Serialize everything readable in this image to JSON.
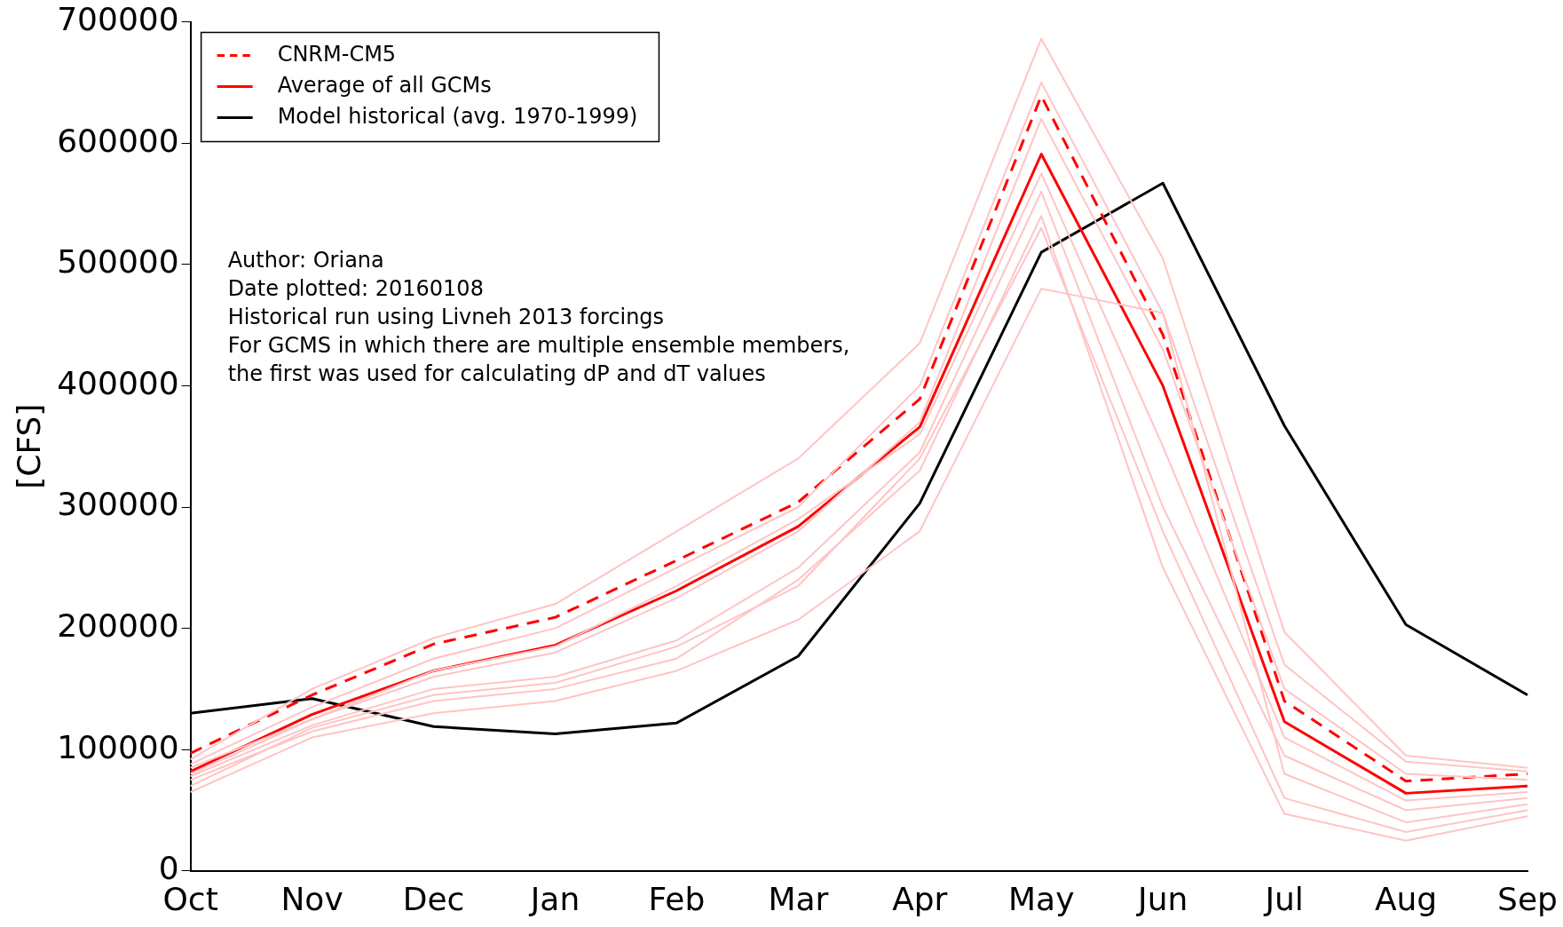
{
  "chart_data": {
    "type": "line",
    "ylabel": "[CFS]",
    "categories": [
      "Oct",
      "Nov",
      "Dec",
      "Jan",
      "Feb",
      "Mar",
      "Apr",
      "May",
      "Jun",
      "Jul",
      "Aug",
      "Sep"
    ],
    "ylim": [
      0,
      700000
    ],
    "yticks": [
      0,
      100000,
      200000,
      300000,
      400000,
      500000,
      600000,
      700000
    ],
    "grid": false,
    "legend": "top left",
    "marker": "none",
    "annotations": [
      "Author: Oriana",
      "Date plotted: 20160108",
      "Historical run using Livneh 2013 forcings",
      "For GCMS in which there are multiple ensemble members,",
      "the first was used for calculating dP and dT values"
    ],
    "series": [
      {
        "color": "#ffc4c4",
        "values": [
          92000,
          150000,
          192000,
          220000,
          280000,
          340000,
          435000,
          686000,
          505000,
          197000,
          95000,
          85000
        ]
      },
      {
        "color": "#ffc4c4",
        "values": [
          65000,
          110000,
          130000,
          140000,
          165000,
          207000,
          280000,
          480000,
          460000,
          80000,
          40000,
          55000
        ]
      },
      {
        "color": "#ffc4c4",
        "values": [
          75000,
          115000,
          140000,
          150000,
          175000,
          240000,
          330000,
          540000,
          250000,
          47000,
          25000,
          45000
        ]
      },
      {
        "color": "#ffc4c4",
        "values": [
          85000,
          125000,
          160000,
          180000,
          225000,
          280000,
          370000,
          620000,
          430000,
          150000,
          80000,
          75000
        ]
      },
      {
        "color": "#ffc4c4",
        "values": [
          78000,
          120000,
          150000,
          160000,
          190000,
          250000,
          345000,
          560000,
          300000,
          95000,
          50000,
          60000
        ]
      },
      {
        "color": "#ffc4c4",
        "values": [
          88000,
          135000,
          175000,
          200000,
          250000,
          300000,
          400000,
          650000,
          460000,
          170000,
          90000,
          82000
        ]
      },
      {
        "color": "#ffc4c4",
        "values": [
          80000,
          125000,
          165000,
          185000,
          235000,
          290000,
          360000,
          575000,
          350000,
          110000,
          58000,
          65000
        ]
      },
      {
        "color": "#ffc4c4",
        "values": [
          70000,
          118000,
          145000,
          155000,
          185000,
          235000,
          340000,
          530000,
          280000,
          60000,
          32000,
          50000
        ]
      },
      {
        "name": "CNRM-CM5",
        "color": "#ff0000",
        "line_style": "dashed",
        "values": [
          97000,
          145000,
          187000,
          209000,
          256000,
          304000,
          389000,
          639000,
          442000,
          140000,
          74000,
          80000
        ]
      },
      {
        "name": "Average of all GCMs",
        "color": "#ff0000",
        "line_style": "solid",
        "values": [
          82000,
          129000,
          165000,
          186000,
          231000,
          284000,
          366000,
          591000,
          400000,
          123000,
          64000,
          70000
        ]
      },
      {
        "name": "Model historical (avg. 1970-1999)",
        "color": "#000000",
        "line_style": "solid",
        "values": [
          130000,
          142000,
          119000,
          113000,
          122000,
          177000,
          303000,
          510000,
          567000,
          367000,
          203000,
          145000
        ]
      }
    ]
  }
}
